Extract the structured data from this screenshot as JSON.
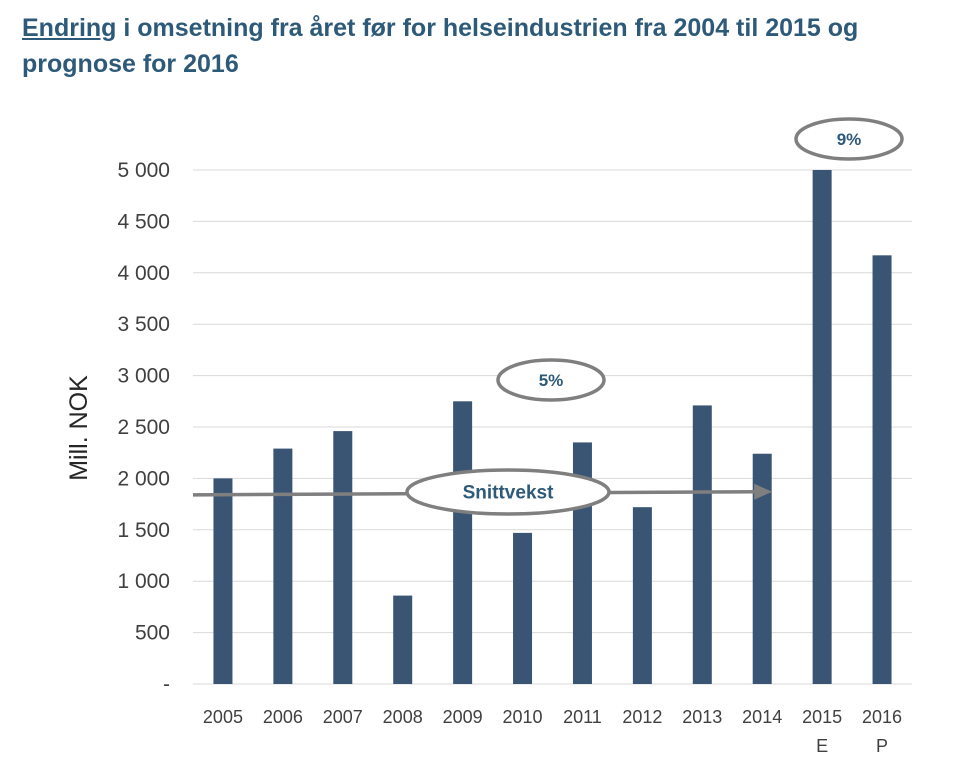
{
  "chart_data": {
    "type": "bar",
    "title_underlined": "Endring",
    "title_rest": " i omsetning fra året før for helseindustrien fra 2004 til 2015 og prognose for 2016",
    "ylabel": "Mill. NOK",
    "xlabel": "",
    "ylim": [
      0,
      5000
    ],
    "yticks": [
      0,
      500,
      1000,
      1500,
      2000,
      2500,
      3000,
      3500,
      4000,
      4500,
      5000
    ],
    "ytick_labels": [
      "-",
      "500",
      "1 000",
      "1 500",
      "2 000",
      "2 500",
      "3 000",
      "3 500",
      "4 000",
      "4 500",
      "5 000"
    ],
    "grid": true,
    "categories": [
      "2005",
      "2006",
      "2007",
      "2008",
      "2009",
      "2010",
      "2011",
      "2012",
      "2013",
      "2014",
      "2015",
      "2016"
    ],
    "category_sublabels": [
      "",
      "",
      "",
      "",
      "",
      "",
      "",
      "",
      "",
      "",
      "E",
      "P"
    ],
    "values": [
      2000,
      2290,
      2460,
      860,
      2750,
      1470,
      2350,
      1720,
      2710,
      2240,
      5000,
      4170
    ],
    "bar_color": "#3a5574",
    "annotations": [
      {
        "text": "5%"
      },
      {
        "text": "9%"
      },
      {
        "text": "Snittvekst"
      }
    ],
    "trend_arrow": {
      "y_start": 1840,
      "y_end": 1870
    }
  }
}
